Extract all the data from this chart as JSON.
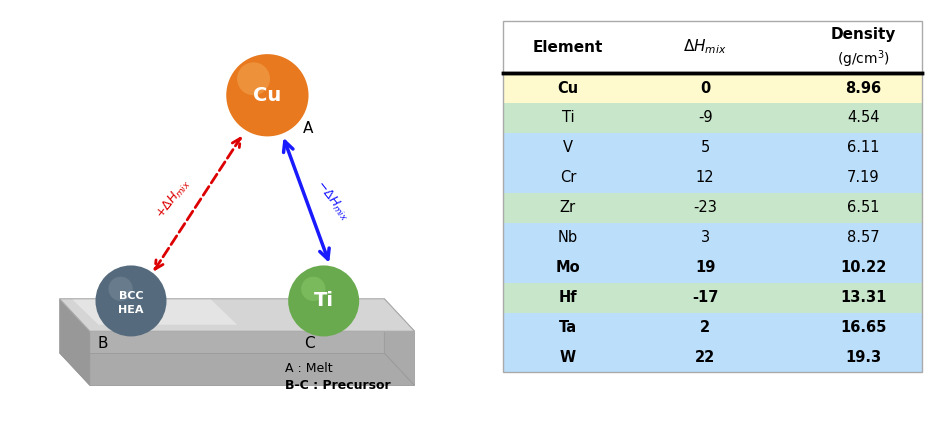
{
  "table_elements": [
    "Cu",
    "Ti",
    "V",
    "Cr",
    "Zr",
    "Nb",
    "Mo",
    "Hf",
    "Ta",
    "W"
  ],
  "table_dH": [
    "0",
    "-9",
    "5",
    "12",
    "-23",
    "3",
    "19",
    "-17",
    "2",
    "22"
  ],
  "table_density": [
    "8.96",
    "4.54",
    "6.11",
    "7.19",
    "6.51",
    "8.57",
    "10.22",
    "13.31",
    "16.65",
    "19.3"
  ],
  "row_colors": [
    "#fffacd",
    "#c8e6c9",
    "#bbdefb",
    "#bbdefb",
    "#c8e6c9",
    "#bbdefb",
    "#bbdefb",
    "#c8e6c9",
    "#bbdefb",
    "#bbdefb"
  ],
  "bold_rows": [
    0,
    6,
    7,
    8,
    9
  ],
  "cu_color": "#E8791E",
  "ti_color": "#6aaa4f",
  "bcc_color": "#556b7d",
  "arrow_red": "#dd0000",
  "arrow_blue": "#1a1aff",
  "bg_color": "#ffffff"
}
